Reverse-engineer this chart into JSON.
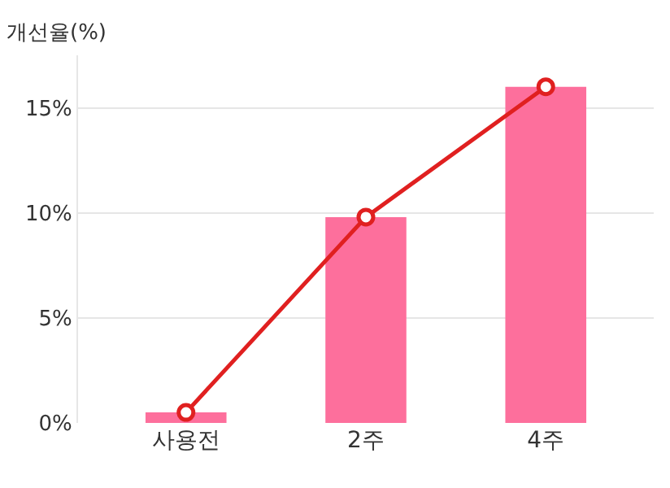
{
  "chart_data": {
    "type": "bar",
    "ylabel": "개선율(%)",
    "categories": [
      "사용전",
      "2주",
      "4주"
    ],
    "series": [
      {
        "color": "#fd6f9c",
        "values": [
          0.5,
          9.8,
          16
        ]
      },
      {
        "type": "line",
        "color": "#e02020",
        "values": [
          0.5,
          9.8,
          16
        ],
        "marker": "circle",
        "line_style": "solid"
      }
    ],
    "ylim": [
      0,
      17.5
    ],
    "yticks": [
      {
        "value": 0,
        "label": "0%"
      },
      {
        "value": 5,
        "label": "5%"
      },
      {
        "value": 10,
        "label": "10%"
      },
      {
        "value": 15,
        "label": "15%"
      }
    ],
    "grid": "y"
  }
}
